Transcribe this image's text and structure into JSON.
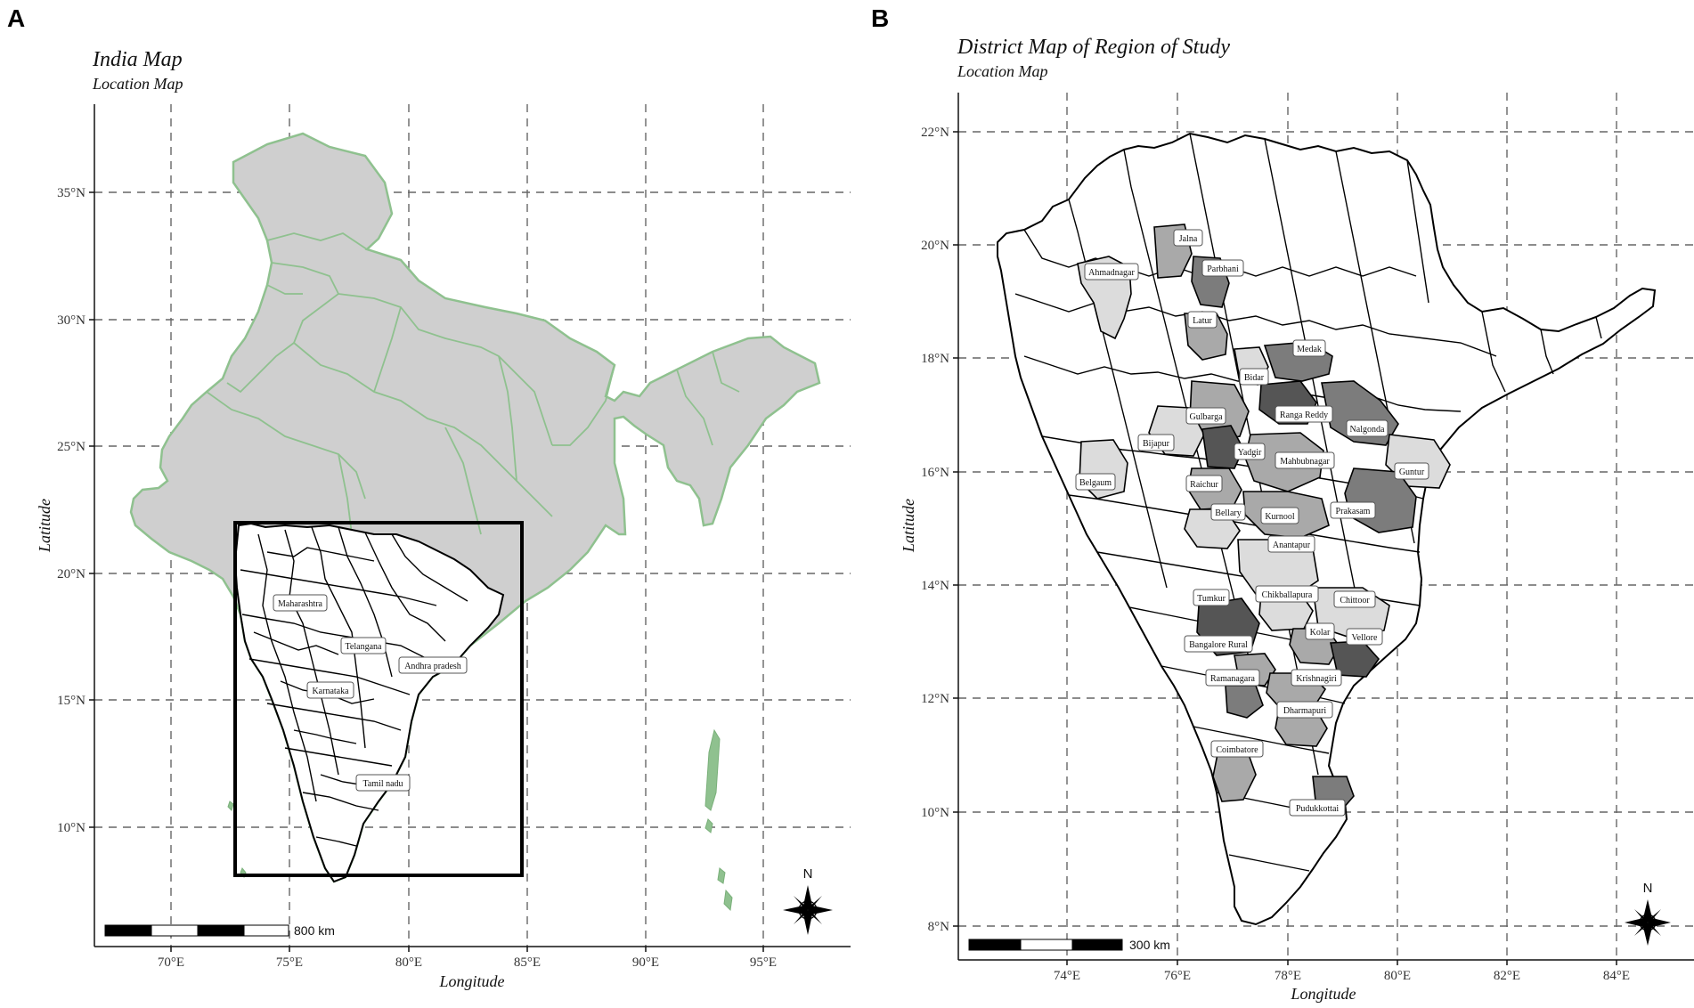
{
  "panels": [
    {
      "letter": "A",
      "title": "India Map",
      "subtitle": "Location Map",
      "xlabel": "Longitude",
      "ylabel": "Latitude",
      "xticks": [
        "70°E",
        "75°E",
        "80°E",
        "85°E",
        "90°E",
        "95°E"
      ],
      "yticks": [
        "10°N",
        "15°N",
        "20°N",
        "25°N",
        "30°N",
        "35°N"
      ],
      "scalebar": "800 km",
      "north": "N",
      "region_labels": [
        "Maharashtra",
        "Telangana",
        "Andhra pradesh",
        "Karnataka",
        "Tamil nadu"
      ]
    },
    {
      "letter": "B",
      "title": "District Map of Region of Study",
      "subtitle": "Location Map",
      "xlabel": "Longitude",
      "ylabel": "Latitude",
      "xticks": [
        "74°E",
        "76°E",
        "78°E",
        "80°E",
        "82°E",
        "84°E"
      ],
      "yticks": [
        "8°N",
        "10°N",
        "12°N",
        "14°N",
        "16°N",
        "18°N",
        "20°N",
        "22°N"
      ],
      "scalebar": "300 km",
      "north": "N",
      "district_labels": [
        "Jalna",
        "Ahmadnagar",
        "Parbhani",
        "Latur",
        "Medak",
        "Bidar",
        "Ranga Reddy",
        "Gulbarga",
        "Nalgonda",
        "Bijapur",
        "Yadgir",
        "Mahbubnagar",
        "Belgaum",
        "Raichur",
        "Guntur",
        "Bellary",
        "Kurnool",
        "Prakasam",
        "Anantapur",
        "Tumkur",
        "Chikballapura",
        "Chittoor",
        "Kolar",
        "Bangalore Rural",
        "Vellore",
        "Ramanagara",
        "Krishnagiri",
        "Dharmapuri",
        "Coimbatore",
        "Pudukkottai"
      ]
    }
  ],
  "colors": {
    "india_fill": "#cfcfcf",
    "india_border": "#8fc18f",
    "shade_light": "#dcdcdc",
    "shade_mid": "#a9a9a9",
    "shade_dark": "#7c7c7c",
    "shade_darkest": "#555555"
  }
}
